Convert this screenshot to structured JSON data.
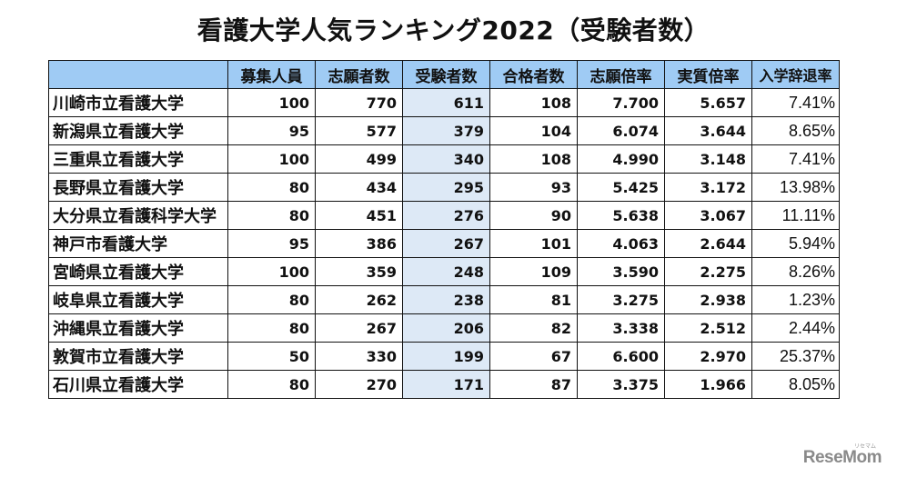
{
  "title": "看護大学人気ランキング2022（受験者数）",
  "table": {
    "headers": [
      "",
      "募集人員",
      "志願者数",
      "受験者数",
      "合格者数",
      "志願倍率",
      "実質倍率",
      "入学辞退率"
    ],
    "highlight_column": "受験者数",
    "highlight_color": "#dde9f6",
    "header_color": "#9fcbf4",
    "rows": [
      {
        "name": "川崎市立看護大学",
        "capacity": "100",
        "applicants": "770",
        "examinees": "611",
        "accepted": "108",
        "application_ratio": "7.700",
        "actual_ratio": "5.657",
        "decline_rate": "7.41%"
      },
      {
        "name": "新潟県立看護大学",
        "capacity": "95",
        "applicants": "577",
        "examinees": "379",
        "accepted": "104",
        "application_ratio": "6.074",
        "actual_ratio": "3.644",
        "decline_rate": "8.65%"
      },
      {
        "name": "三重県立看護大学",
        "capacity": "100",
        "applicants": "499",
        "examinees": "340",
        "accepted": "108",
        "application_ratio": "4.990",
        "actual_ratio": "3.148",
        "decline_rate": "7.41%"
      },
      {
        "name": "長野県立看護大学",
        "capacity": "80",
        "applicants": "434",
        "examinees": "295",
        "accepted": "93",
        "application_ratio": "5.425",
        "actual_ratio": "3.172",
        "decline_rate": "13.98%"
      },
      {
        "name": "大分県立看護科学大学",
        "capacity": "80",
        "applicants": "451",
        "examinees": "276",
        "accepted": "90",
        "application_ratio": "5.638",
        "actual_ratio": "3.067",
        "decline_rate": "11.11%"
      },
      {
        "name": "神戸市看護大学",
        "capacity": "95",
        "applicants": "386",
        "examinees": "267",
        "accepted": "101",
        "application_ratio": "4.063",
        "actual_ratio": "2.644",
        "decline_rate": "5.94%"
      },
      {
        "name": "宮崎県立看護大学",
        "capacity": "100",
        "applicants": "359",
        "examinees": "248",
        "accepted": "109",
        "application_ratio": "3.590",
        "actual_ratio": "2.275",
        "decline_rate": "8.26%"
      },
      {
        "name": "岐阜県立看護大学",
        "capacity": "80",
        "applicants": "262",
        "examinees": "238",
        "accepted": "81",
        "application_ratio": "3.275",
        "actual_ratio": "2.938",
        "decline_rate": "1.23%"
      },
      {
        "name": "沖縄県立看護大学",
        "capacity": "80",
        "applicants": "267",
        "examinees": "206",
        "accepted": "82",
        "application_ratio": "3.338",
        "actual_ratio": "2.512",
        "decline_rate": "2.44%"
      },
      {
        "name": "敦賀市立看護大学",
        "capacity": "50",
        "applicants": "330",
        "examinees": "199",
        "accepted": "67",
        "application_ratio": "6.600",
        "actual_ratio": "2.970",
        "decline_rate": "25.37%"
      },
      {
        "name": "石川県立看護大学",
        "capacity": "80",
        "applicants": "270",
        "examinees": "171",
        "accepted": "87",
        "application_ratio": "3.375",
        "actual_ratio": "1.966",
        "decline_rate": "8.05%"
      }
    ]
  },
  "logo": {
    "text": "ReseMom",
    "ruby": "リセマム"
  }
}
